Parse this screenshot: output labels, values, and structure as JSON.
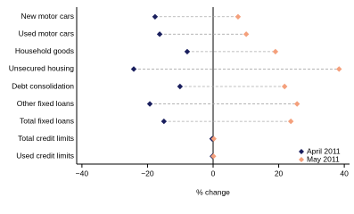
{
  "chart_data": {
    "type": "dot",
    "x_label": "% change",
    "categories": [
      "New motor cars",
      "Used motor cars",
      "Household goods",
      "Unsecured housing",
      "Debt consolidation",
      "Other fixed loans",
      "Total fixed loans",
      "Total credit limits",
      "Used credit limits"
    ],
    "series": [
      {
        "name": "April 2011",
        "color": "#1a1f5e",
        "values": [
          -17.7,
          -16.3,
          -7.9,
          -24.2,
          -10.1,
          -19.3,
          -15.0,
          -0.3,
          -0.2
        ]
      },
      {
        "name": "May 2011",
        "color": "#f4a07c",
        "values": [
          7.6,
          10.1,
          19.0,
          38.4,
          21.8,
          25.6,
          23.7,
          0.2,
          0.1
        ]
      }
    ],
    "xlim": [
      -41.6,
      41.6
    ],
    "xticks": [
      {
        "value": -40,
        "label": "−40"
      },
      {
        "value": -20,
        "label": "−20"
      },
      0,
      20,
      40
    ],
    "legend": "lower right"
  }
}
